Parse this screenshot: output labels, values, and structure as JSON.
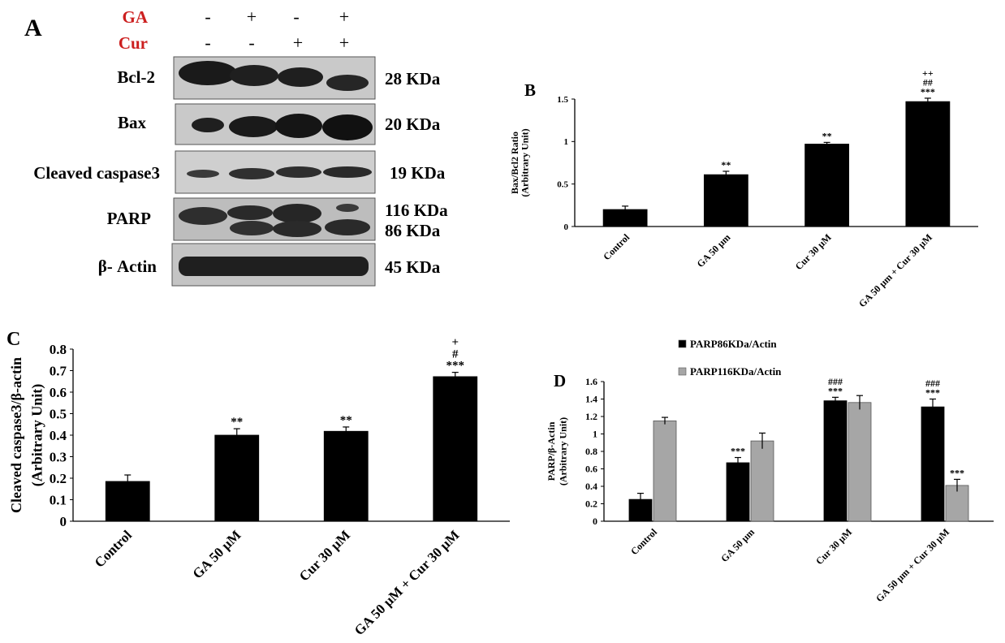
{
  "panels": {
    "a": "A",
    "b": "B",
    "c": "C",
    "d": "D"
  },
  "blot": {
    "treatments": [
      {
        "name": "GA",
        "signs": [
          "-",
          "+",
          "-",
          "+"
        ]
      },
      {
        "name": "Cur",
        "signs": [
          "-",
          "-",
          "+",
          "+"
        ]
      }
    ],
    "rows": [
      {
        "protein": "Bcl-2",
        "kda": [
          "28 KDa"
        ]
      },
      {
        "protein": "Bax",
        "kda": [
          "20 KDa"
        ]
      },
      {
        "protein": "Cleaved caspase3",
        "kda": [
          "19 KDa"
        ]
      },
      {
        "protein": "PARP",
        "kda": [
          "116 KDa",
          "86 KDa"
        ]
      },
      {
        "protein": "β- Actin",
        "kda": [
          "45 KDa"
        ]
      }
    ],
    "colors": {
      "treatment_label": "#cc1f1f"
    }
  },
  "chart_data": [
    {
      "panel": "B",
      "type": "bar",
      "categories": [
        "Control",
        "GA 50 µm",
        "Cur 30 µM",
        "GA 50 µm + Cur 30 µM"
      ],
      "values": [
        0.2,
        0.61,
        0.97,
        1.47
      ],
      "errors": [
        0.04,
        0.04,
        0.02,
        0.04
      ],
      "annotations": [
        [],
        [
          "**"
        ],
        [
          "**"
        ],
        [
          "++",
          "##",
          "***"
        ]
      ],
      "ylabel": "Bax/Bcl2 Ratio",
      "ylabel2": "(Arbitrary Unit)",
      "ylim": [
        0,
        1.5
      ],
      "yticks": [
        "0",
        "0.5",
        "1",
        "1.5"
      ],
      "colors": [
        "#000000"
      ]
    },
    {
      "panel": "C",
      "type": "bar",
      "categories": [
        "Control",
        "GA 50 µM",
        "Cur 30 µM",
        "GA 50 µM + Cur 30 µM"
      ],
      "values": [
        0.185,
        0.4,
        0.418,
        0.672
      ],
      "errors": [
        0.03,
        0.03,
        0.02,
        0.02
      ],
      "annotations": [
        [],
        [
          "**"
        ],
        [
          "**"
        ],
        [
          "+",
          "#",
          "***"
        ]
      ],
      "ylabel": "Cleaved caspase3/β-actin",
      "ylabel2": "(Arbitrary  Unit)",
      "ylim": [
        0,
        0.8
      ],
      "yticks": [
        "0",
        "0.1",
        "0.2",
        "0.3",
        "0.4",
        "0.5",
        "0.6",
        "0.7",
        "0.8"
      ],
      "colors": [
        "#000000"
      ]
    },
    {
      "panel": "D",
      "type": "bar",
      "categories": [
        "Control",
        "GA 50 µm",
        "Cur 30 µM",
        "GA 50 µm + Cur 30 µM"
      ],
      "series": [
        {
          "name": "PARP86KDa/Actin",
          "values": [
            0.25,
            0.67,
            1.38,
            1.31
          ],
          "errors": [
            0.07,
            0.06,
            0.04,
            0.09
          ],
          "annotations": [
            [],
            [
              "***"
            ],
            [
              "###",
              "***"
            ],
            [
              "###",
              "***"
            ]
          ]
        },
        {
          "name": "PARP116KDa/Actin",
          "values": [
            1.15,
            0.92,
            1.36,
            0.41
          ],
          "errors": [
            0.04,
            0.09,
            0.08,
            0.07
          ],
          "annotations": [
            [],
            [],
            [],
            [
              "***"
            ]
          ]
        }
      ],
      "ylabel": "PARP/β-Actin",
      "ylabel2": "(Arbitrary  Unit)",
      "ylim": [
        0,
        1.6
      ],
      "yticks": [
        "0",
        "0.2",
        "0.4",
        "0.6",
        "0.8",
        "1",
        "1.2",
        "1.4",
        "1.6"
      ],
      "colors": [
        "#000000",
        "#a6a6a6"
      ]
    }
  ]
}
